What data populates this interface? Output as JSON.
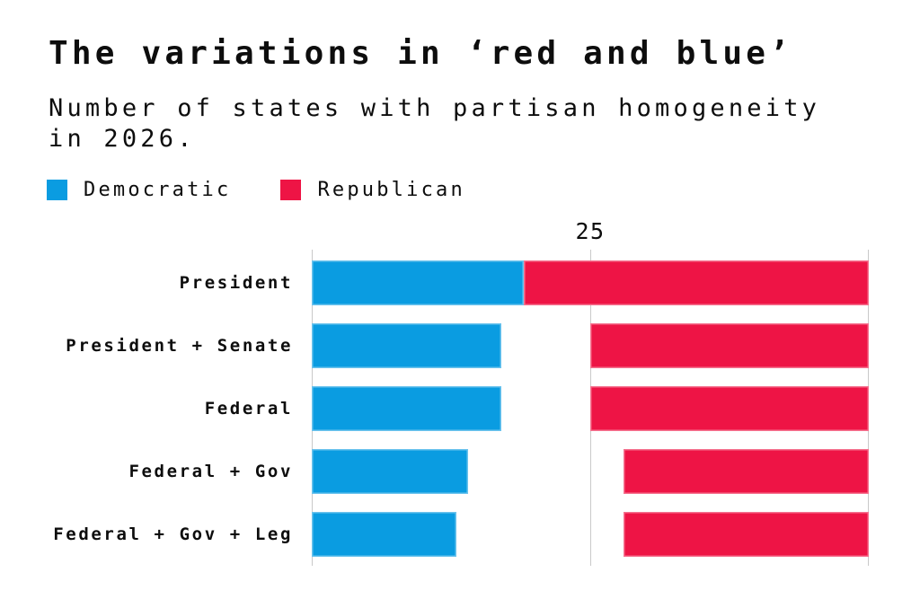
{
  "header": {
    "title": "The variations in ‘red and blue’",
    "subtitle": "Number of states with partisan homogeneity\nin 2026."
  },
  "legend": [
    {
      "label": "Democratic",
      "color": "#0a9ce1"
    },
    {
      "label": "Republican",
      "color": "#ee1445"
    }
  ],
  "colors": {
    "democratic": "#0a9ce1",
    "republican": "#ee1445",
    "gridline": "#c9c9c9",
    "text": "#0d0d0d",
    "background": "#ffffff"
  },
  "chart_data": {
    "type": "bar",
    "orientation": "horizontal",
    "title": "The variations in ‘red and blue’",
    "subtitle": "Number of states with partisan homogeneity in 2026.",
    "categories": [
      "President",
      "President + Senate",
      "Federal",
      "Federal + Gov",
      "Federal + Gov + Leg"
    ],
    "series": [
      {
        "name": "Democratic",
        "color": "#0a9ce1",
        "align": "left",
        "values": [
          19,
          17,
          17,
          14,
          13
        ]
      },
      {
        "name": "Republican",
        "color": "#ee1445",
        "align": "right",
        "values": [
          31,
          25,
          25,
          22,
          22
        ]
      }
    ],
    "xlim": [
      0,
      50
    ],
    "gridlines": [
      0,
      25,
      50
    ],
    "ticks": [
      {
        "value": 25,
        "label": "25"
      }
    ],
    "legend_position": "top",
    "grid": "vertical-only",
    "note_layout": "Democratic bars anchored at 0 (left); Republican bars right-aligned to 50; in the President row 19 + 31 = 50 so the bars touch."
  }
}
